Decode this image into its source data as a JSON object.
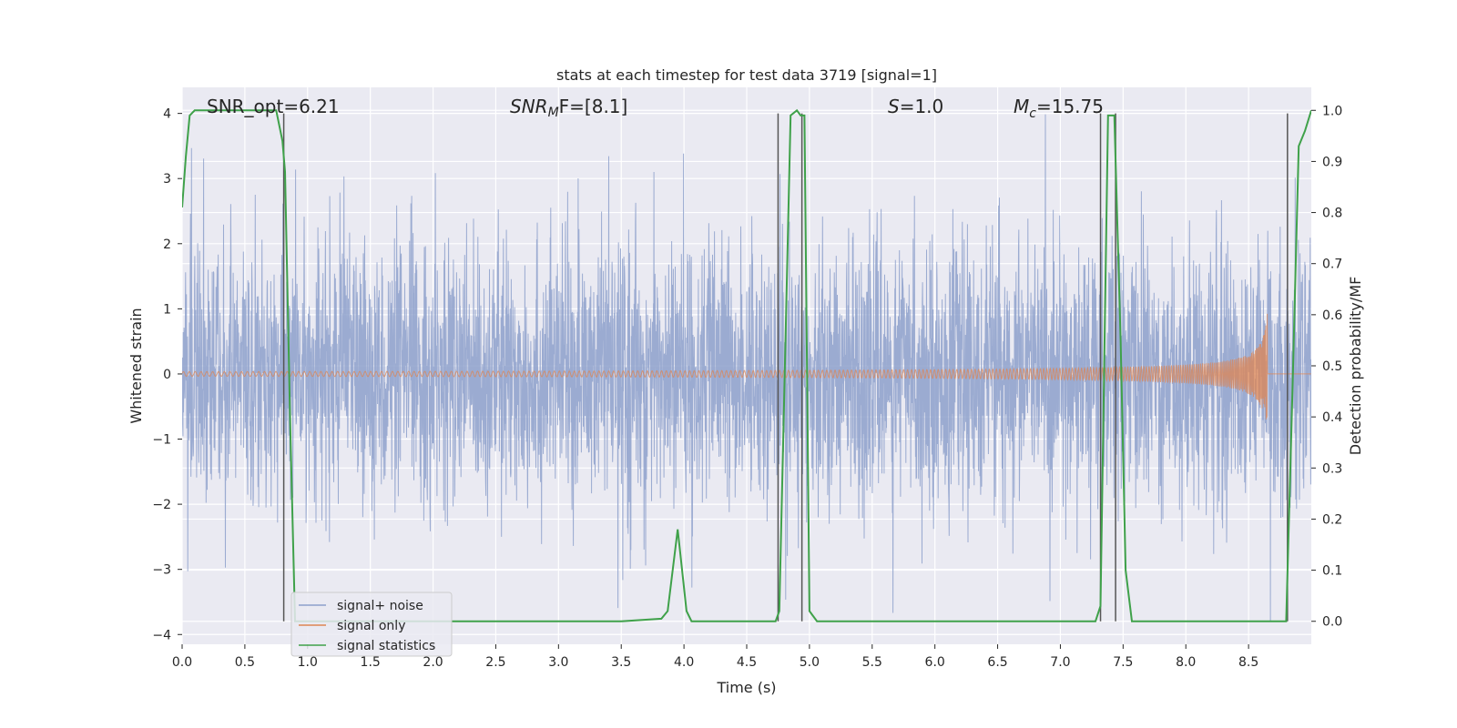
{
  "chart_data": {
    "type": "line",
    "title": "stats at each timestep for test data 3719 [signal=1]",
    "xlabel": "Time (s)",
    "ylabel": "Whitened strain",
    "y2label": "Detection probability/MF",
    "xlim": [
      0.0,
      9.0
    ],
    "ylim": [
      -4.15,
      4.4
    ],
    "y2lim": [
      -0.045,
      1.045
    ],
    "grid": true,
    "legend_position": "lower-left",
    "x_ticks": [
      "0.0",
      "0.5",
      "1.0",
      "1.5",
      "2.0",
      "2.5",
      "3.0",
      "3.5",
      "4.0",
      "4.5",
      "5.0",
      "5.5",
      "6.0",
      "6.5",
      "7.0",
      "7.5",
      "8.0",
      "8.5"
    ],
    "y_ticks": [
      "−4",
      "−3",
      "−2",
      "−1",
      "0",
      "1",
      "2",
      "3",
      "4"
    ],
    "y2_ticks": [
      "0.0",
      "0.1",
      "0.2",
      "0.3",
      "0.4",
      "0.5",
      "0.6",
      "0.7",
      "0.8",
      "0.9",
      "1.0"
    ],
    "annotations": {
      "snr_opt": "SNR_opt=6.21",
      "snr_mf_main": "SNR",
      "snr_mf_sub": "M",
      "snr_mf_rest": "F=[8.1]",
      "s_main": "S",
      "s_rest": "=1.0",
      "mc_main": "M",
      "mc_sub": "c",
      "mc_rest": "=15.75"
    },
    "series": [
      {
        "name": "signal+ noise",
        "color": "#8da0cb",
        "kind": "strain",
        "approx_range": [
          -3.8,
          4.2
        ],
        "duration": 9.0
      },
      {
        "name": "signal only",
        "color": "#dd8452",
        "kind": "chirp",
        "merger_time": 8.65,
        "peak_amplitude": 1.0
      },
      {
        "name": "signal statistics",
        "color": "#3fa14a",
        "axis": "right",
        "x": [
          0.0,
          0.03,
          0.06,
          0.1,
          0.15,
          0.2,
          0.3,
          0.4,
          0.5,
          0.6,
          0.7,
          0.75,
          0.8,
          0.82,
          0.86,
          0.9,
          0.95,
          1.0,
          1.5,
          2.0,
          2.5,
          3.0,
          3.5,
          3.82,
          3.87,
          3.95,
          4.02,
          4.06,
          4.5,
          4.73,
          4.76,
          4.8,
          4.85,
          4.9,
          4.93,
          4.96,
          5.0,
          5.06,
          5.5,
          6.0,
          6.5,
          7.0,
          7.28,
          7.32,
          7.38,
          7.43,
          7.48,
          7.52,
          7.57,
          8.0,
          8.5,
          8.8,
          8.85,
          8.9,
          8.95,
          9.0
        ],
        "y": [
          0.81,
          0.91,
          0.99,
          1.0,
          1.0,
          1.0,
          1.0,
          1.0,
          1.0,
          1.0,
          1.0,
          1.0,
          0.94,
          0.88,
          0.4,
          0.0,
          0.0,
          0.0,
          0.0,
          0.0,
          0.0,
          0.0,
          0.0,
          0.005,
          0.02,
          0.18,
          0.02,
          0.0,
          0.0,
          0.0,
          0.02,
          0.45,
          0.99,
          1.0,
          0.99,
          0.99,
          0.02,
          0.0,
          0.0,
          0.0,
          0.0,
          0.0,
          0.0,
          0.03,
          0.99,
          0.99,
          0.55,
          0.1,
          0.0,
          0.0,
          0.0,
          0.0,
          0.45,
          0.93,
          0.96,
          1.0
        ]
      }
    ],
    "vlines_x": [
      0.81,
      4.75,
      4.94,
      7.32,
      7.44,
      8.81
    ]
  }
}
